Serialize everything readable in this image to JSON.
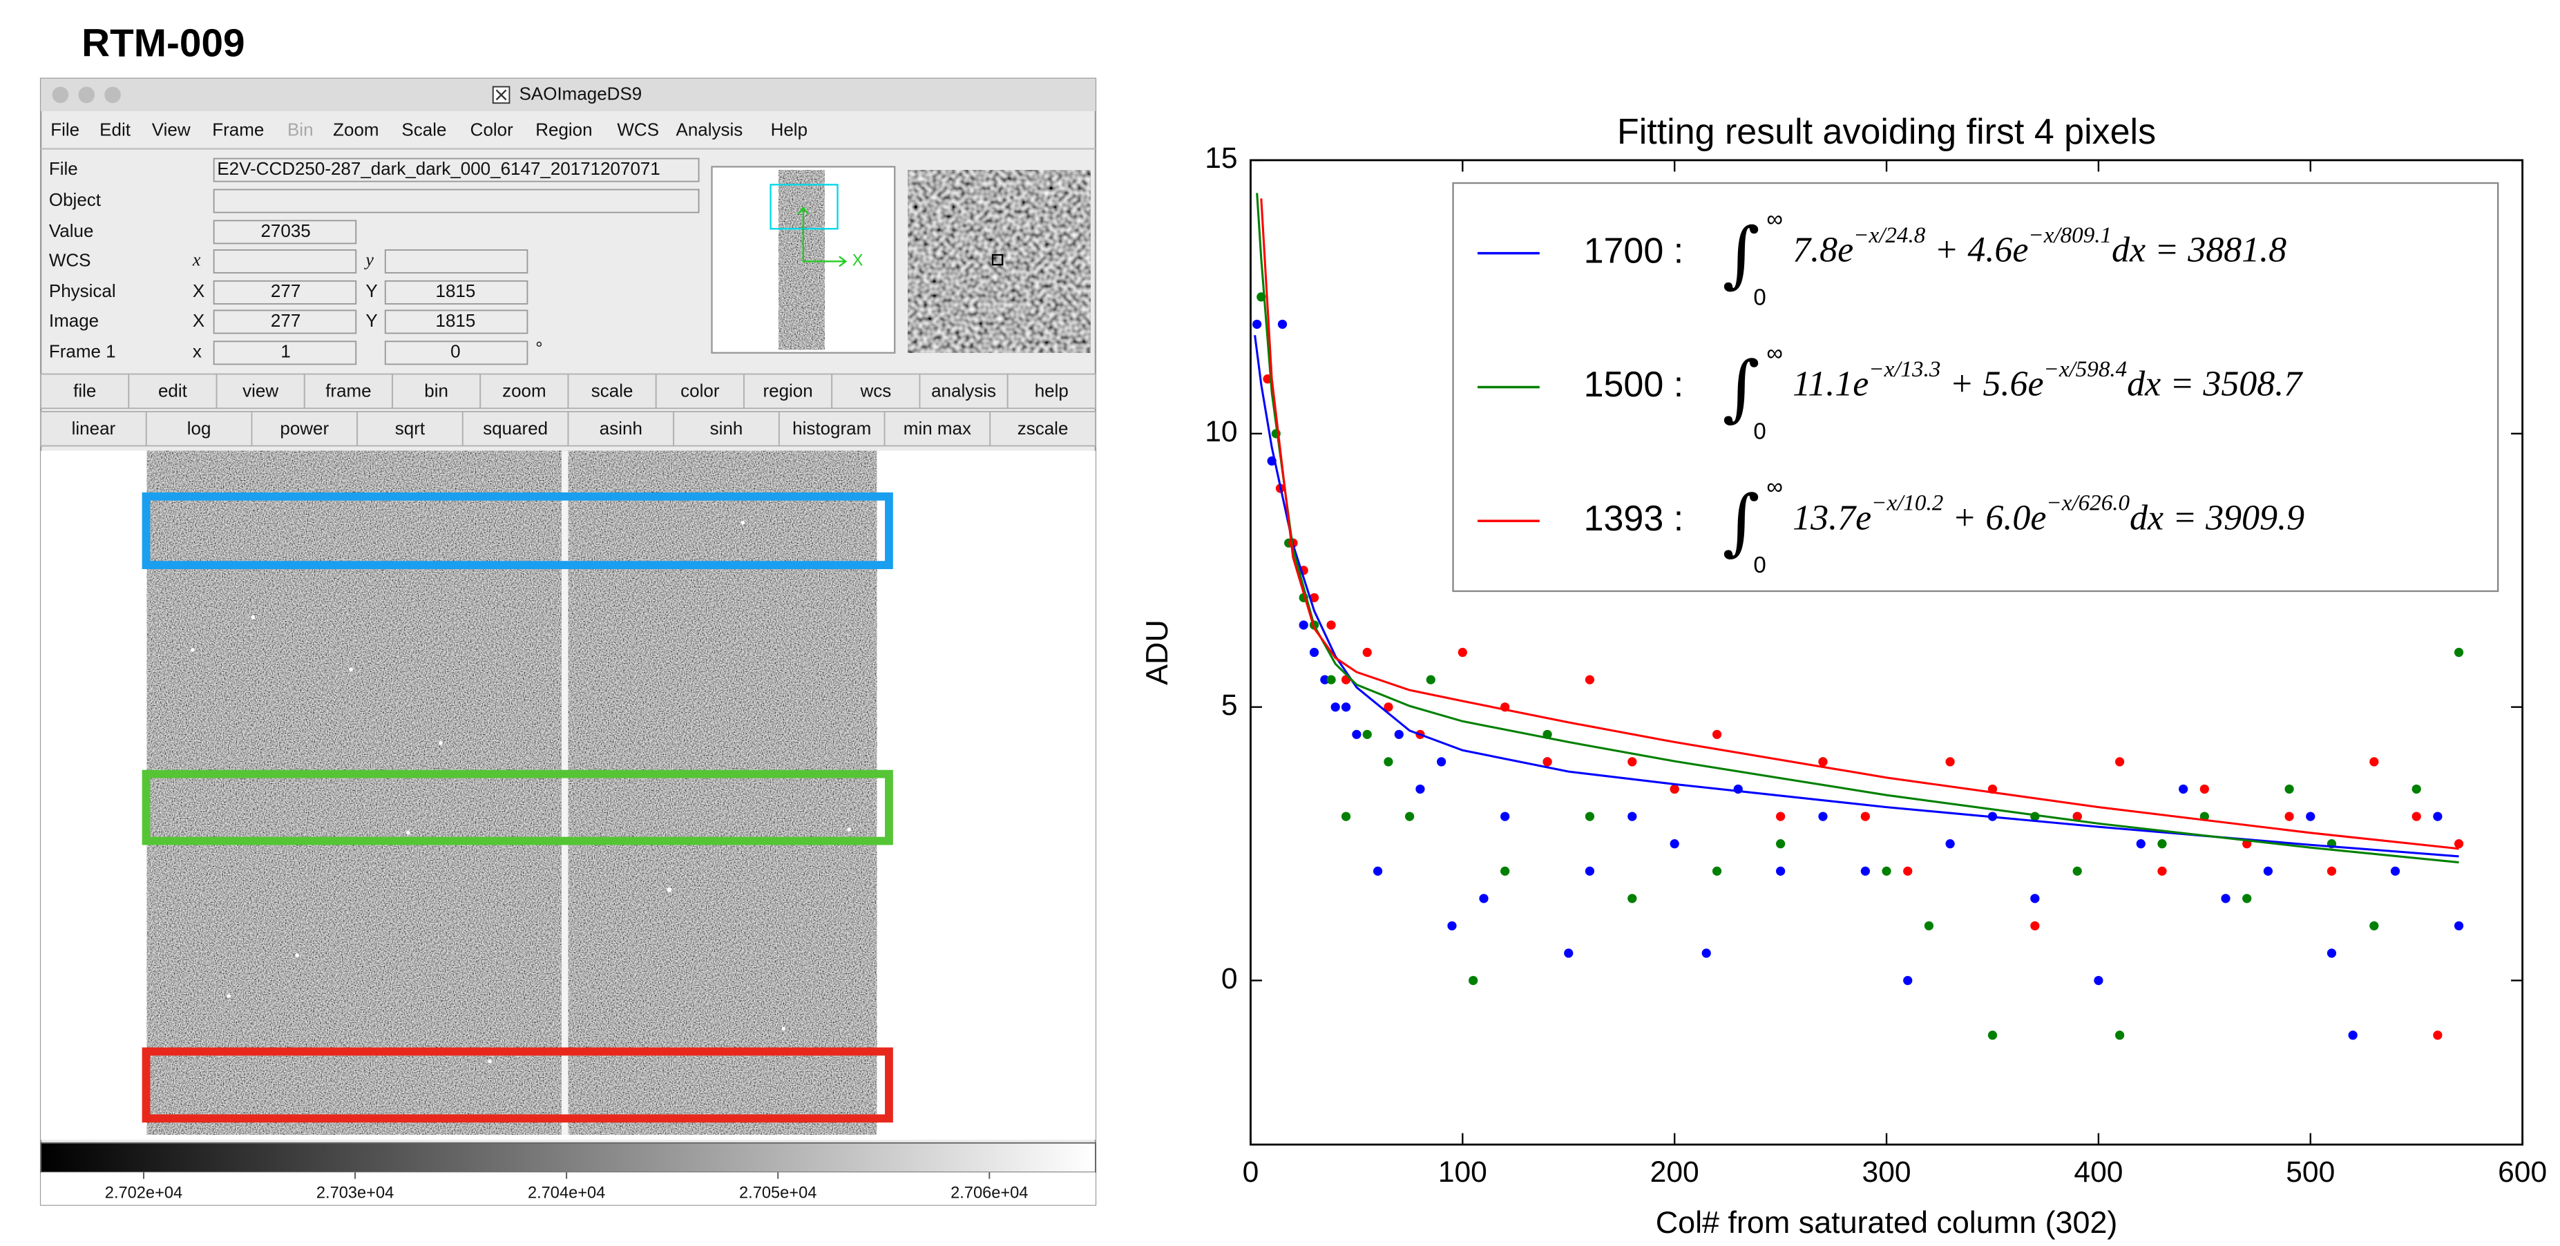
{
  "header": {
    "title": "RTM-009"
  },
  "window": {
    "title": "SAOImageDS9",
    "menu": [
      "File",
      "Edit",
      "View",
      "Frame",
      "Bin",
      "Zoom",
      "Scale",
      "Color",
      "Region",
      "WCS",
      "Analysis",
      "Help"
    ],
    "info": {
      "rows": [
        {
          "label": "File",
          "text": "E2V-CCD250-287_dark_dark_000_6147_20171207071"
        },
        {
          "label": "Object"
        },
        {
          "label": "Value",
          "x_value": "27035"
        },
        {
          "label": "WCS",
          "x_label": "x",
          "y_label": "y"
        },
        {
          "label": "Physical",
          "x_label": "X",
          "x_value": "277",
          "y_label": "Y",
          "y_value": "1815"
        },
        {
          "label": "Image",
          "x_label": "X",
          "x_value": "277",
          "y_label": "Y",
          "y_value": "1815"
        },
        {
          "label": "Frame 1",
          "x_label": "x",
          "x_value": "1",
          "y_value": "0",
          "unit": "°"
        }
      ]
    },
    "panner": {
      "axis": "X"
    },
    "buttons": [
      "file",
      "edit",
      "view",
      "frame",
      "bin",
      "zoom",
      "scale",
      "color",
      "region",
      "wcs",
      "analysis",
      "help"
    ],
    "scale_buttons": [
      "linear",
      "log",
      "power",
      "sqrt",
      "squared",
      "asinh",
      "sinh",
      "histogram",
      "min max",
      "zscale"
    ],
    "colorbar": {
      "labels": [
        "2.702e+04",
        "2.703e+04",
        "2.704e+04",
        "2.705e+04",
        "2.706e+04"
      ]
    }
  },
  "chart_data": {
    "type": "scatter",
    "title": "Fitting result avoiding first 4 pixels",
    "x_label": "Col# from saturated column (302)",
    "y_label": "ADU",
    "xlim": [
      0,
      600
    ],
    "ylim": [
      -3,
      15
    ],
    "xticks": [
      0,
      100,
      200,
      300,
      400,
      500,
      600
    ],
    "yticks": [
      0,
      5,
      10,
      15
    ],
    "legend": "upper right",
    "series": [
      {
        "name": "1700 :",
        "color": "#0000ff",
        "formula": {
          "integral": "∫",
          "upper": "∞",
          "lower": "0",
          "terms": [
            "7.8e",
            "−x/24.8",
            " + 4.6e",
            "−x/809.1",
            "dx = 3881.8"
          ]
        },
        "points": {
          "x": [
            3,
            15,
            10,
            20,
            25,
            30,
            35,
            40,
            45,
            50,
            60,
            70,
            80,
            90,
            95,
            110,
            120,
            140,
            150,
            160,
            180,
            200,
            215,
            230,
            250,
            270,
            290,
            310,
            330,
            350,
            370,
            390,
            400,
            420,
            440,
            460,
            480,
            500,
            510,
            520,
            540,
            560,
            570
          ],
          "values": [
            12,
            12,
            9.5,
            8,
            6.5,
            6,
            5.5,
            5,
            5,
            4.5,
            2,
            4.5,
            3.5,
            4,
            1,
            1.5,
            3,
            4,
            0.5,
            2,
            3,
            2.5,
            0.5,
            3.5,
            2,
            3,
            2,
            0,
            2.5,
            3,
            1.5,
            3,
            0,
            2.5,
            3.5,
            1.5,
            2,
            3,
            0.5,
            -1,
            2,
            3,
            1
          ]
        },
        "fit": {
          "x": [
            2,
            5,
            10,
            20,
            30,
            40,
            50,
            75,
            100,
            150,
            200,
            300,
            400,
            500,
            570
          ],
          "values": [
            11.8,
            10.9,
            9.75,
            7.97,
            6.76,
            5.93,
            5.36,
            4.57,
            4.21,
            3.82,
            3.59,
            3.17,
            2.81,
            2.48,
            2.27
          ]
        }
      },
      {
        "name": "1500 :",
        "color": "#008000",
        "formula": {
          "integral": "∫",
          "upper": "∞",
          "lower": "0",
          "terms": [
            "11.1e",
            "−x/13.3",
            " + 5.6e",
            "−x/598.4",
            "dx = 3508.7"
          ]
        },
        "points": {
          "x": [
            5,
            12,
            18,
            25,
            30,
            38,
            45,
            55,
            65,
            75,
            85,
            105,
            120,
            140,
            160,
            180,
            200,
            220,
            250,
            270,
            300,
            320,
            350,
            370,
            390,
            410,
            430,
            450,
            470,
            490,
            510,
            530,
            550,
            570
          ],
          "values": [
            12.5,
            10,
            8,
            7,
            6.5,
            5.5,
            3,
            4.5,
            4,
            3,
            5.5,
            0,
            2,
            4.5,
            3,
            1.5,
            3.5,
            2,
            2.5,
            4,
            2,
            1,
            -1,
            3,
            2,
            -1,
            2.5,
            3,
            1.5,
            3.5,
            2.5,
            1,
            3.5,
            6
          ]
        },
        "fit": {
          "x": [
            3,
            5,
            10,
            20,
            30,
            40,
            50,
            75,
            100,
            150,
            200,
            300,
            400,
            500,
            570
          ],
          "values": [
            14.4,
            13.2,
            10.75,
            7.89,
            6.49,
            5.79,
            5.41,
            5.02,
            4.74,
            4.36,
            4.01,
            3.39,
            2.87,
            2.43,
            2.16
          ]
        }
      },
      {
        "name": "1393 :",
        "color": "#ff0000",
        "formula": {
          "integral": "∫",
          "upper": "∞",
          "lower": "0",
          "terms": [
            "13.7e",
            "−x/10.2",
            " + 6.0e",
            "−x/626.0",
            "dx = 3909.9"
          ]
        },
        "points": {
          "x": [
            8,
            14,
            20,
            25,
            30,
            38,
            45,
            55,
            65,
            80,
            100,
            120,
            140,
            160,
            180,
            200,
            220,
            250,
            270,
            290,
            310,
            330,
            350,
            370,
            390,
            410,
            430,
            450,
            470,
            490,
            510,
            530,
            550,
            560,
            570
          ],
          "values": [
            11,
            9,
            8,
            7.5,
            7,
            6.5,
            5.5,
            6,
            5,
            4.5,
            6,
            5,
            4,
            5.5,
            4,
            3.5,
            4.5,
            3,
            4,
            3,
            2,
            4,
            3.5,
            1,
            3,
            4,
            2,
            3.5,
            2.5,
            3,
            2,
            4,
            3,
            -1,
            2.5
          ]
        },
        "fit": {
          "x": [
            5,
            10,
            20,
            30,
            40,
            50,
            75,
            100,
            150,
            200,
            300,
            400,
            500,
            570
          ],
          "values": [
            14.3,
            11.0,
            7.74,
            6.44,
            5.9,
            5.64,
            5.31,
            5.11,
            4.72,
            4.36,
            3.71,
            3.17,
            2.7,
            2.41
          ]
        }
      }
    ]
  }
}
